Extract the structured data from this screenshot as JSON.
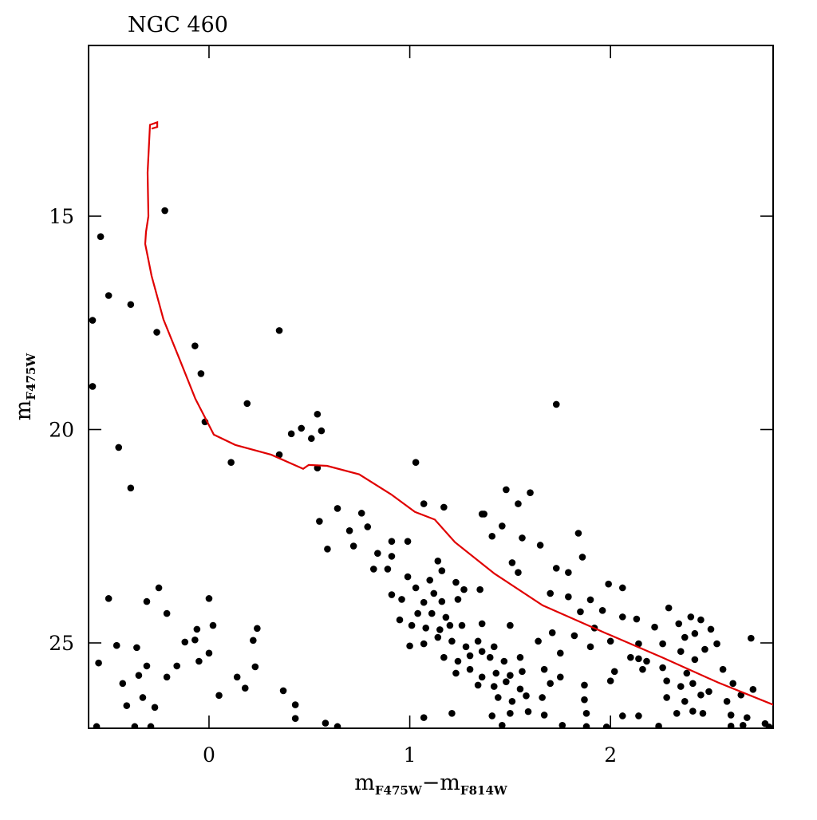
{
  "chart_data": {
    "type": "scatter",
    "title": "NGC 460",
    "xlabel": [
      "m",
      "F475W",
      "−m",
      "F814W"
    ],
    "ylabel": [
      "m",
      "F475W"
    ],
    "xlim": [
      -0.6,
      2.81
    ],
    "ylim": [
      27,
      11
    ],
    "xticks": [
      0,
      1,
      2
    ],
    "yticks": [
      15,
      20,
      25
    ],
    "grid": false,
    "point_color": "#000000",
    "line_color": "#e00000",
    "isochrone": [
      [
        -0.286,
        12.95
      ],
      [
        -0.258,
        12.91
      ],
      [
        -0.258,
        12.8
      ],
      [
        -0.294,
        12.86
      ],
      [
        -0.298,
        13.23
      ],
      [
        -0.306,
        13.98
      ],
      [
        -0.302,
        15.0
      ],
      [
        -0.314,
        15.37
      ],
      [
        -0.318,
        15.65
      ],
      [
        -0.286,
        16.4
      ],
      [
        -0.227,
        17.42
      ],
      [
        -0.147,
        18.35
      ],
      [
        -0.068,
        19.28
      ],
      [
        0.024,
        20.12
      ],
      [
        0.131,
        20.36
      ],
      [
        0.31,
        20.59
      ],
      [
        0.469,
        20.92
      ],
      [
        0.497,
        20.83
      ],
      [
        0.588,
        20.85
      ],
      [
        0.748,
        21.05
      ],
      [
        0.907,
        21.52
      ],
      [
        1.026,
        21.93
      ],
      [
        1.125,
        22.11
      ],
      [
        1.225,
        22.64
      ],
      [
        1.423,
        23.38
      ],
      [
        1.662,
        24.12
      ],
      [
        1.98,
        24.78
      ],
      [
        2.258,
        25.34
      ],
      [
        2.537,
        25.93
      ],
      [
        2.811,
        26.45
      ]
    ],
    "points": [
      [
        -0.22,
        14.87
      ],
      [
        -0.54,
        15.48
      ],
      [
        -0.5,
        16.86
      ],
      [
        -0.39,
        17.07
      ],
      [
        -0.58,
        17.44
      ],
      [
        -0.26,
        17.72
      ],
      [
        0.35,
        17.68
      ],
      [
        -0.07,
        18.04
      ],
      [
        -0.04,
        18.69
      ],
      [
        -0.58,
        18.99
      ],
      [
        0.19,
        19.39
      ],
      [
        1.73,
        19.41
      ],
      [
        -0.02,
        19.82
      ],
      [
        0.41,
        20.1
      ],
      [
        0.46,
        19.97
      ],
      [
        0.51,
        20.21
      ],
      [
        0.54,
        19.64
      ],
      [
        0.56,
        20.03
      ],
      [
        0.35,
        20.59
      ],
      [
        -0.45,
        20.42
      ],
      [
        0.11,
        20.77
      ],
      [
        0.54,
        20.9
      ],
      [
        -0.39,
        21.37
      ],
      [
        1.03,
        20.77
      ],
      [
        1.48,
        21.41
      ],
      [
        1.6,
        21.48
      ],
      [
        1.54,
        21.74
      ],
      [
        1.07,
        21.74
      ],
      [
        1.17,
        21.82
      ],
      [
        0.64,
        21.85
      ],
      [
        0.76,
        21.96
      ],
      [
        1.36,
        21.98
      ],
      [
        1.37,
        21.98
      ],
      [
        0.55,
        22.15
      ],
      [
        0.79,
        22.28
      ],
      [
        0.7,
        22.37
      ],
      [
        1.46,
        22.26
      ],
      [
        1.84,
        22.43
      ],
      [
        0.59,
        22.8
      ],
      [
        0.72,
        22.73
      ],
      [
        0.91,
        22.62
      ],
      [
        0.99,
        22.62
      ],
      [
        1.41,
        22.5
      ],
      [
        1.56,
        22.54
      ],
      [
        1.65,
        22.71
      ],
      [
        0.84,
        22.9
      ],
      [
        0.91,
        22.97
      ],
      [
        1.14,
        23.08
      ],
      [
        1.51,
        23.12
      ],
      [
        1.86,
        22.99
      ],
      [
        0.82,
        23.27
      ],
      [
        0.89,
        23.27
      ],
      [
        1.16,
        23.31
      ],
      [
        1.54,
        23.35
      ],
      [
        1.73,
        23.25
      ],
      [
        1.79,
        23.35
      ],
      [
        0.99,
        23.45
      ],
      [
        1.1,
        23.53
      ],
      [
        1.23,
        23.58
      ],
      [
        1.03,
        23.71
      ],
      [
        1.12,
        23.84
      ],
      [
        1.27,
        23.75
      ],
      [
        1.35,
        23.75
      ],
      [
        0.91,
        23.87
      ],
      [
        0.96,
        23.98
      ],
      [
        1.07,
        24.05
      ],
      [
        1.16,
        24.03
      ],
      [
        1.24,
        23.98
      ],
      [
        1.7,
        23.84
      ],
      [
        1.79,
        23.92
      ],
      [
        1.9,
        23.99
      ],
      [
        1.99,
        23.62
      ],
      [
        2.06,
        23.71
      ],
      [
        2.29,
        24.18
      ],
      [
        2.4,
        24.39
      ],
      [
        2.45,
        24.46
      ],
      [
        1.04,
        24.31
      ],
      [
        1.11,
        24.31
      ],
      [
        1.18,
        24.4
      ],
      [
        0.95,
        24.46
      ],
      [
        1.01,
        24.59
      ],
      [
        1.08,
        24.65
      ],
      [
        1.15,
        24.69
      ],
      [
        1.2,
        24.59
      ],
      [
        1.26,
        24.59
      ],
      [
        1.36,
        24.55
      ],
      [
        1.5,
        24.59
      ],
      [
        1.85,
        24.27
      ],
      [
        1.96,
        24.24
      ],
      [
        2.06,
        24.39
      ],
      [
        2.13,
        24.44
      ],
      [
        2.22,
        24.63
      ],
      [
        2.34,
        24.55
      ],
      [
        2.42,
        24.78
      ],
      [
        2.37,
        24.87
      ],
      [
        2.5,
        24.68
      ],
      [
        1.71,
        24.76
      ],
      [
        1.82,
        24.83
      ],
      [
        1.92,
        24.65
      ],
      [
        2.0,
        24.96
      ],
      [
        2.14,
        25.02
      ],
      [
        2.26,
        25.02
      ],
      [
        2.47,
        25.15
      ],
      [
        2.53,
        25.02
      ],
      [
        2.7,
        24.89
      ],
      [
        1.0,
        25.07
      ],
      [
        1.07,
        25.02
      ],
      [
        1.14,
        24.87
      ],
      [
        1.21,
        24.96
      ],
      [
        1.28,
        25.09
      ],
      [
        1.34,
        24.96
      ],
      [
        1.42,
        25.09
      ],
      [
        1.64,
        24.96
      ],
      [
        1.75,
        25.24
      ],
      [
        1.9,
        25.09
      ],
      [
        2.1,
        25.34
      ],
      [
        2.14,
        25.37
      ],
      [
        2.18,
        25.43
      ],
      [
        2.35,
        25.2
      ],
      [
        2.42,
        25.39
      ],
      [
        1.17,
        25.34
      ],
      [
        1.24,
        25.43
      ],
      [
        1.3,
        25.3
      ],
      [
        1.36,
        25.2
      ],
      [
        1.4,
        25.34
      ],
      [
        1.47,
        25.43
      ],
      [
        1.55,
        25.34
      ],
      [
        1.23,
        25.71
      ],
      [
        1.3,
        25.62
      ],
      [
        1.36,
        25.8
      ],
      [
        1.43,
        25.71
      ],
      [
        1.5,
        25.76
      ],
      [
        1.56,
        25.67
      ],
      [
        1.67,
        25.62
      ],
      [
        2.02,
        25.67
      ],
      [
        2.16,
        25.62
      ],
      [
        2.26,
        25.58
      ],
      [
        2.38,
        25.71
      ],
      [
        2.56,
        25.62
      ],
      [
        1.34,
        25.99
      ],
      [
        1.42,
        26.02
      ],
      [
        1.48,
        25.91
      ],
      [
        1.55,
        26.08
      ],
      [
        1.7,
        25.95
      ],
      [
        1.75,
        25.8
      ],
      [
        1.87,
        25.99
      ],
      [
        2.0,
        25.89
      ],
      [
        2.28,
        25.89
      ],
      [
        2.35,
        26.02
      ],
      [
        2.41,
        25.95
      ],
      [
        2.49,
        26.14
      ],
      [
        2.61,
        25.95
      ],
      [
        2.71,
        26.09
      ],
      [
        1.44,
        26.28
      ],
      [
        1.51,
        26.37
      ],
      [
        1.58,
        26.24
      ],
      [
        1.66,
        26.28
      ],
      [
        1.87,
        26.33
      ],
      [
        2.28,
        26.28
      ],
      [
        2.37,
        26.37
      ],
      [
        2.45,
        26.22
      ],
      [
        2.58,
        26.37
      ],
      [
        2.65,
        26.22
      ],
      [
        1.41,
        26.71
      ],
      [
        1.5,
        26.65
      ],
      [
        1.59,
        26.61
      ],
      [
        1.67,
        26.69
      ],
      [
        1.88,
        26.65
      ],
      [
        2.06,
        26.71
      ],
      [
        2.14,
        26.71
      ],
      [
        2.33,
        26.65
      ],
      [
        2.41,
        26.6
      ],
      [
        2.46,
        26.65
      ],
      [
        2.6,
        26.69
      ],
      [
        2.68,
        26.75
      ],
      [
        1.07,
        26.75
      ],
      [
        1.21,
        26.65
      ],
      [
        1.46,
        26.93
      ],
      [
        1.76,
        26.93
      ],
      [
        1.88,
        26.96
      ],
      [
        1.98,
        26.97
      ],
      [
        2.24,
        26.95
      ],
      [
        2.6,
        26.95
      ],
      [
        2.66,
        26.93
      ],
      [
        2.77,
        26.89
      ],
      [
        2.79,
        26.97
      ],
      [
        -0.5,
        23.96
      ],
      [
        -0.31,
        24.03
      ],
      [
        -0.25,
        23.71
      ],
      [
        0.0,
        23.96
      ],
      [
        -0.21,
        24.31
      ],
      [
        0.02,
        24.59
      ],
      [
        0.24,
        24.66
      ],
      [
        -0.46,
        25.06
      ],
      [
        -0.36,
        25.11
      ],
      [
        -0.12,
        24.98
      ],
      [
        -0.07,
        24.93
      ],
      [
        -0.06,
        24.68
      ],
      [
        0.22,
        24.94
      ],
      [
        -0.55,
        25.47
      ],
      [
        -0.31,
        25.54
      ],
      [
        0.0,
        25.24
      ],
      [
        -0.05,
        25.43
      ],
      [
        -0.16,
        25.54
      ],
      [
        0.23,
        25.56
      ],
      [
        -0.35,
        25.76
      ],
      [
        -0.21,
        25.8
      ],
      [
        -0.43,
        25.95
      ],
      [
        0.14,
        25.8
      ],
      [
        0.18,
        26.06
      ],
      [
        0.05,
        26.23
      ],
      [
        -0.33,
        26.28
      ],
      [
        -0.41,
        26.47
      ],
      [
        -0.27,
        26.51
      ],
      [
        0.37,
        26.12
      ],
      [
        0.43,
        26.45
      ],
      [
        0.43,
        26.77
      ],
      [
        -0.56,
        26.96
      ],
      [
        -0.37,
        26.96
      ],
      [
        -0.29,
        26.96
      ],
      [
        0.58,
        26.88
      ],
      [
        0.64,
        26.96
      ]
    ]
  }
}
